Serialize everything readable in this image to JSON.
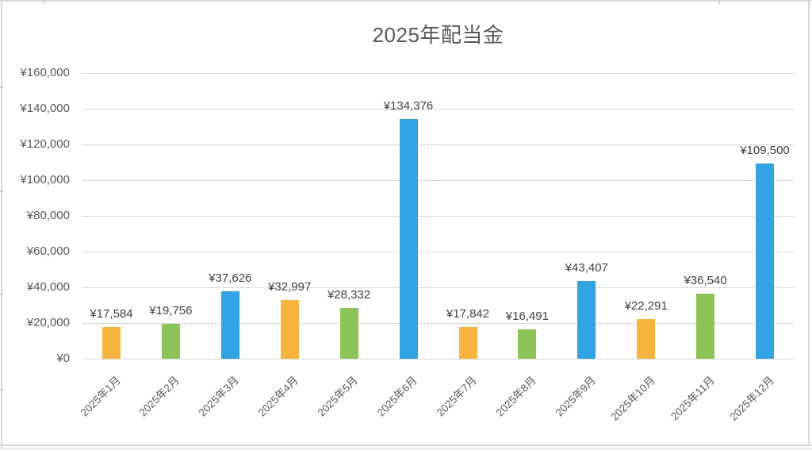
{
  "sheet": {
    "background": "#ffffff",
    "gridline_color": "#d8d8d8"
  },
  "chart_data": {
    "type": "bar",
    "title": "2025年配当金",
    "categories": [
      "2025年1月",
      "2025年2月",
      "2025年3月",
      "2025年4月",
      "2025年5月",
      "2025年6月",
      "2025年7月",
      "2025年8月",
      "2025年9月",
      "2025年10月",
      "2025年11月",
      "2025年12月"
    ],
    "values": [
      17584,
      19756,
      37626,
      32997,
      28332,
      134376,
      17842,
      16491,
      43407,
      22291,
      36540,
      109500
    ],
    "value_labels": [
      "¥17,584",
      "¥19,756",
      "¥37,626",
      "¥32,997",
      "¥28,332",
      "¥134,376",
      "¥17,842",
      "¥16,491",
      "¥43,407",
      "¥22,291",
      "¥36,540",
      "¥109,500"
    ],
    "bar_colors": [
      "#F7B43E",
      "#8DC45A",
      "#34A3E4",
      "#F7B43E",
      "#8DC45A",
      "#34A3E4",
      "#F7B43E",
      "#8DC45A",
      "#34A3E4",
      "#F7B43E",
      "#8DC45A",
      "#34A3E4"
    ],
    "color_cycle": {
      "orange": "#F7B43E",
      "green": "#8DC45A",
      "blue": "#34A3E4"
    },
    "y_ticks": [
      "¥0",
      "¥20,000",
      "¥40,000",
      "¥60,000",
      "¥80,000",
      "¥100,000",
      "¥120,000",
      "¥140,000",
      "¥160,000"
    ],
    "ylim": [
      0,
      160000
    ],
    "xlabel": "",
    "ylabel": "",
    "grid": true,
    "legend": false,
    "title_color": "#595959",
    "axis_text_color": "#595959",
    "value_label_color": "#404040",
    "grid_color": "#d9d9d9"
  }
}
